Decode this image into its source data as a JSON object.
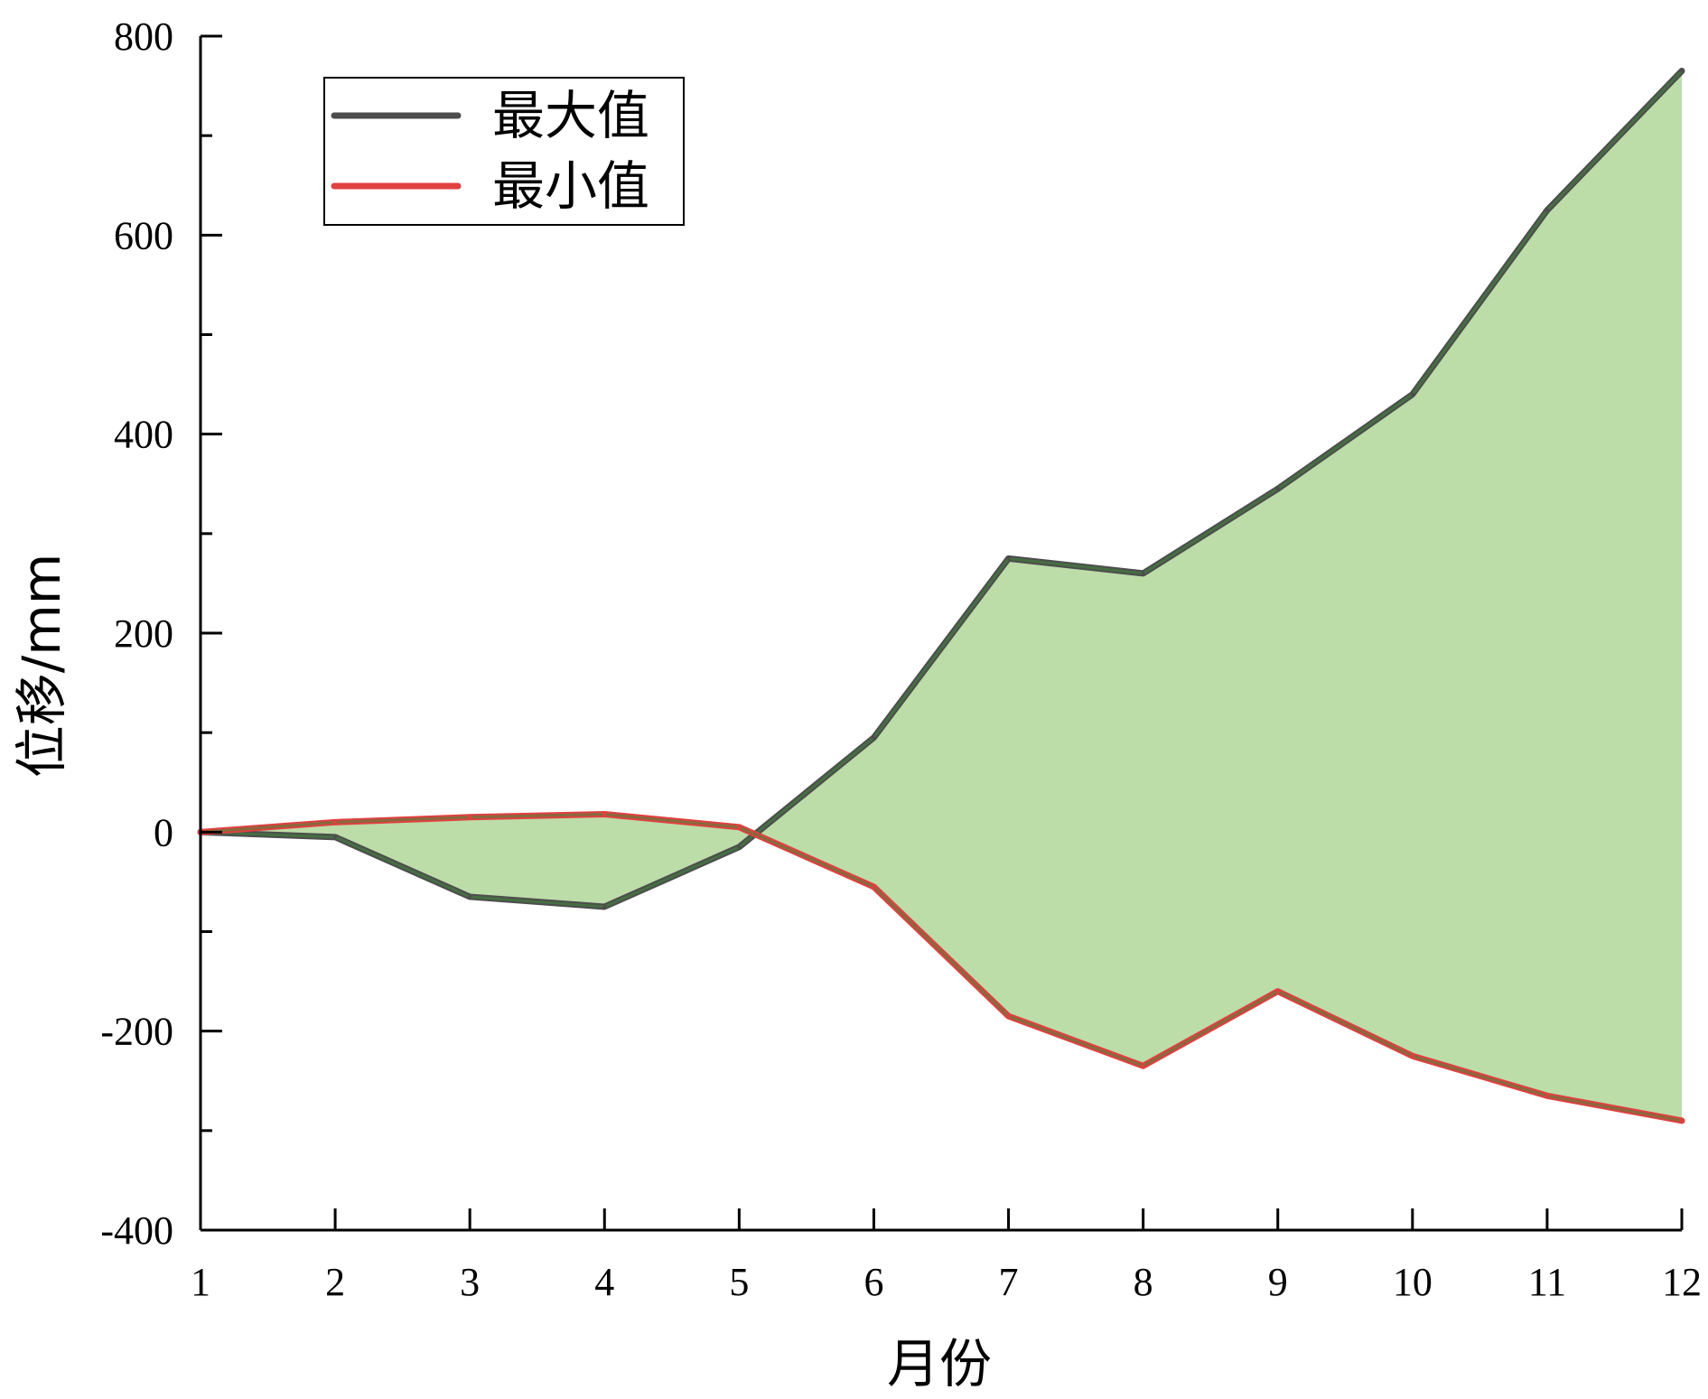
{
  "chart_data": {
    "type": "line",
    "x": [
      1,
      2,
      3,
      4,
      5,
      6,
      7,
      8,
      9,
      10,
      11,
      12
    ],
    "series": [
      {
        "name": "最大值",
        "values": [
          0,
          -5,
          -65,
          -75,
          -15,
          95,
          275,
          260,
          345,
          440,
          625,
          765
        ],
        "color": "#4d4d4d"
      },
      {
        "name": "最小值",
        "values": [
          0,
          10,
          15,
          18,
          5,
          -55,
          -185,
          -235,
          -160,
          -225,
          -265,
          -290
        ],
        "color": "#e04040"
      }
    ],
    "fill_between": {
      "color": "#bcdca8",
      "edge_color": "#3f8a3a"
    },
    "xlabel": "月份",
    "ylabel": "位移/mm",
    "xlim": [
      1,
      12
    ],
    "ylim": [
      -400,
      800
    ],
    "xticks": [
      "1",
      "2",
      "3",
      "4",
      "5",
      "6",
      "7",
      "8",
      "9",
      "10",
      "11",
      "12"
    ],
    "yticks": [
      "-400",
      "-200",
      "0",
      "200",
      "400",
      "600",
      "800"
    ],
    "grid": false,
    "legend": "top-left"
  }
}
